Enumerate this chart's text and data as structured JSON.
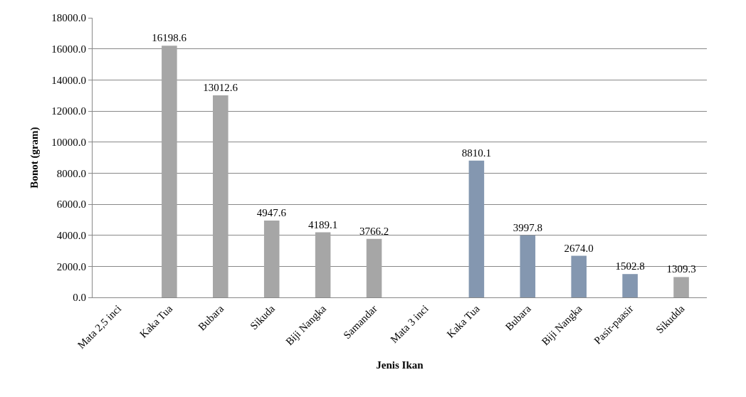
{
  "chart_data": {
    "type": "bar",
    "xlabel": "Jenis Ikan",
    "ylabel": "Bonot (gram)",
    "categories": [
      "Mata 2,5 inci",
      "Kaka Tua",
      "Bubara",
      "Sikuda",
      "Biji Nangka",
      "Samandar",
      "Mata 3 inci",
      "Kaka Tua",
      "Bubara",
      "Biji Nangka",
      "Pasir-paasir",
      "Sikudda"
    ],
    "values": [
      null,
      16198.6,
      13012.6,
      4947.6,
      4189.1,
      3766.2,
      null,
      8810.1,
      3997.8,
      2674.0,
      1502.8,
      1309.3
    ],
    "value_labels": [
      null,
      "16198.6",
      "13012.6",
      "4947.6",
      "4189.1",
      "3766.2",
      null,
      "8810.1",
      "3997.8",
      "2674.0",
      "1502.8",
      "1309.3"
    ],
    "colors": [
      "#a6a6a6",
      "#a6a6a6",
      "#a6a6a6",
      "#a6a6a6",
      "#a6a6a6",
      "#a6a6a6",
      "#8497b0",
      "#8497b0",
      "#8497b0",
      "#8497b0",
      "#8497b0",
      "#a6a6a6"
    ],
    "ylim": [
      0,
      18000
    ],
    "yticks": [
      {
        "value": 0,
        "label": "0.0"
      },
      {
        "value": 2000,
        "label": "2000.0"
      },
      {
        "value": 4000,
        "label": "4000.0"
      },
      {
        "value": 6000,
        "label": "6000.0"
      },
      {
        "value": 8000,
        "label": "8000.0"
      },
      {
        "value": 10000,
        "label": "10000.0"
      },
      {
        "value": 12000,
        "label": "12000.0"
      },
      {
        "value": 14000,
        "label": "14000.0"
      },
      {
        "value": 16000,
        "label": "16000.0"
      },
      {
        "value": 18000,
        "label": "18000.0"
      }
    ],
    "grid": "y",
    "legend": false
  }
}
